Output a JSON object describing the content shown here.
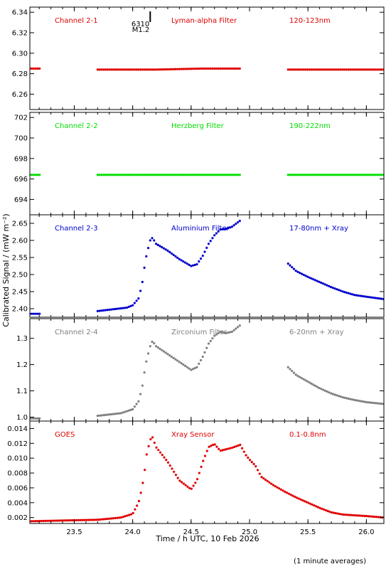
{
  "figure": {
    "ylabel": "Calibrated Signal / (mW m⁻²)",
    "xlabel": "Time / h UTC, 10 Feb 2026",
    "footnote": "(1 minute averages)",
    "flare_marker": {
      "x": 24.15,
      "labels": [
        "6310",
        "M1.2"
      ]
    },
    "x_ticks": [
      "23.5",
      "24.0",
      "24.5",
      "25.0",
      "25.5",
      "26.0"
    ],
    "xlim": [
      23.12,
      26.15
    ]
  },
  "chart_data": [
    {
      "type": "scatter",
      "channel": "Channel 2-1",
      "filter": "Lyman-alpha Filter",
      "band": "120-123nm",
      "color": "#e00000",
      "ylim": [
        6.245,
        6.345
      ],
      "y_ticks": [
        "6.26",
        "6.28",
        "6.30",
        "6.32",
        "6.34"
      ],
      "segments": [
        {
          "x": [
            23.12,
            23.21
          ],
          "y": [
            6.285,
            6.285
          ]
        },
        {
          "x": [
            23.7,
            24.2,
            24.6,
            24.92
          ],
          "y": [
            6.284,
            6.284,
            6.285,
            6.285
          ]
        },
        {
          "x": [
            25.33,
            25.8,
            26.15
          ],
          "y": [
            6.284,
            6.284,
            6.284
          ]
        }
      ]
    },
    {
      "type": "scatter",
      "channel": "Channel 2-2",
      "filter": "Herzberg Filter",
      "band": "190-222nm",
      "color": "#00dd00",
      "ylim": [
        692.5,
        702.5
      ],
      "y_ticks": [
        "694",
        "696",
        "698",
        "700",
        "702"
      ],
      "segments": [
        {
          "x": [
            23.12,
            23.21
          ],
          "y": [
            696.4,
            696.4
          ]
        },
        {
          "x": [
            23.7,
            24.2,
            24.6,
            24.92
          ],
          "y": [
            696.4,
            696.4,
            696.4,
            696.4
          ]
        },
        {
          "x": [
            25.33,
            25.85,
            26.15
          ],
          "y": [
            696.4,
            696.4,
            696.4
          ]
        }
      ]
    },
    {
      "type": "scatter",
      "channel": "Channel 2-3",
      "filter": "Aluminium Filter",
      "band": "17-80nm + Xray",
      "color": "#0000cc",
      "ylim": [
        2.375,
        2.675
      ],
      "y_ticks": [
        "2.40",
        "2.45",
        "2.50",
        "2.55",
        "2.60",
        "2.65"
      ],
      "segments": [
        {
          "x": [
            23.12,
            23.21
          ],
          "y": [
            2.385,
            2.385
          ]
        },
        {
          "x": [
            23.7,
            23.8,
            23.9,
            23.95,
            24.0,
            24.05,
            24.08,
            24.1,
            24.12,
            24.15,
            24.17,
            24.2,
            24.3,
            24.4,
            24.5,
            24.55,
            24.6,
            24.65,
            24.7,
            24.75,
            24.8,
            24.85,
            24.92
          ],
          "y": [
            2.393,
            2.397,
            2.401,
            2.403,
            2.41,
            2.43,
            2.47,
            2.52,
            2.56,
            2.6,
            2.608,
            2.59,
            2.57,
            2.545,
            2.525,
            2.53,
            2.555,
            2.59,
            2.615,
            2.632,
            2.634,
            2.64,
            2.658
          ]
        },
        {
          "x": [
            25.33,
            25.4,
            25.5,
            25.6,
            25.7,
            25.8,
            25.9,
            26.0,
            26.15
          ],
          "y": [
            2.532,
            2.51,
            2.493,
            2.478,
            2.463,
            2.45,
            2.44,
            2.435,
            2.428
          ]
        }
      ]
    },
    {
      "type": "scatter",
      "channel": "Channel 2-4",
      "filter": "Zirconium Filter",
      "band": "6-20nm + Xray",
      "color": "#808080",
      "ylim": [
        0.985,
        1.375
      ],
      "y_ticks": [
        "1.0",
        "1.1",
        "1.2",
        "1.3"
      ],
      "segments": [
        {
          "x": [
            23.12,
            23.21
          ],
          "y": [
            0.995,
            0.995
          ]
        },
        {
          "x": [
            23.7,
            23.8,
            23.9,
            24.0,
            24.05,
            24.08,
            24.1,
            24.12,
            24.15,
            24.17,
            24.2,
            24.3,
            24.4,
            24.5,
            24.55,
            24.6,
            24.65,
            24.7,
            24.75,
            24.8,
            24.85,
            24.92
          ],
          "y": [
            1.005,
            1.01,
            1.015,
            1.03,
            1.06,
            1.11,
            1.17,
            1.22,
            1.27,
            1.29,
            1.27,
            1.24,
            1.21,
            1.18,
            1.19,
            1.23,
            1.28,
            1.31,
            1.325,
            1.32,
            1.325,
            1.35
          ]
        },
        {
          "x": [
            25.33,
            25.4,
            25.5,
            25.6,
            25.7,
            25.8,
            25.9,
            26.0,
            26.15
          ],
          "y": [
            1.19,
            1.16,
            1.135,
            1.11,
            1.09,
            1.075,
            1.065,
            1.057,
            1.05
          ]
        }
      ]
    },
    {
      "type": "scatter",
      "channel": "GOES",
      "filter": "Xray Sensor",
      "band": "0.1-0.8nm",
      "color": "#e00000",
      "ylim": [
        0.0012,
        0.015
      ],
      "y_ticks": [
        "0.002",
        "0.004",
        "0.006",
        "0.008",
        "0.010",
        "0.012",
        "0.014"
      ],
      "segments": [
        {
          "x": [
            23.12,
            23.4,
            23.7,
            23.9,
            24.0,
            24.05,
            24.08,
            24.1,
            24.12,
            24.15,
            24.17,
            24.2,
            24.3,
            24.4,
            24.5,
            24.55,
            24.6,
            24.65,
            24.7,
            24.75,
            24.8,
            24.85,
            24.92,
            24.97,
            25.0,
            25.05,
            25.1,
            25.2,
            25.3,
            25.4,
            25.5,
            25.6,
            25.7,
            25.8,
            26.0,
            26.15
          ],
          "y": [
            0.0015,
            0.0016,
            0.0017,
            0.002,
            0.0025,
            0.004,
            0.006,
            0.008,
            0.0105,
            0.0125,
            0.0128,
            0.0115,
            0.0095,
            0.007,
            0.0058,
            0.007,
            0.0095,
            0.0115,
            0.0119,
            0.011,
            0.0112,
            0.0114,
            0.0118,
            0.0104,
            0.0098,
            0.009,
            0.0075,
            0.0064,
            0.0055,
            0.0047,
            0.004,
            0.0033,
            0.0027,
            0.0024,
            0.0022,
            0.002
          ]
        }
      ]
    }
  ]
}
